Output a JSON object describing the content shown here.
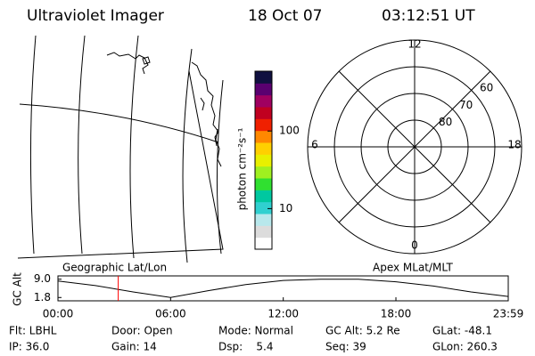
{
  "header": {
    "title": "Ultraviolet Imager",
    "date": "18 Oct 07",
    "time": "03:12:51 UT"
  },
  "colorbar": {
    "label": "photon cm⁻²s⁻¹",
    "log": true,
    "lim": [
      3,
      590
    ],
    "ticks": [
      10,
      100
    ],
    "colors": [
      "#ffffff",
      "#dcdcdc",
      "#b8e8ec",
      "#30d0d0",
      "#00c8a0",
      "#30e030",
      "#a0f020",
      "#e8f000",
      "#ffd000",
      "#ff8800",
      "#f02000",
      "#c00020",
      "#a00060",
      "#5a0070",
      "#101040"
    ]
  },
  "polar": {
    "rlim": [
      90,
      50
    ],
    "rings": [
      80,
      70,
      60
    ],
    "mlt_labels": [
      12,
      6,
      18,
      0
    ]
  },
  "chart_data": {
    "type": "line",
    "label_left": "Geographic Lat/Lon",
    "label_right": "Apex MLat/MLT",
    "ylabel": "GC Alt",
    "x": [
      0,
      2,
      4,
      6,
      8,
      10,
      12,
      14,
      16,
      18,
      20,
      22,
      23.983
    ],
    "values": [
      8.3,
      6.5,
      4.0,
      1.8,
      4.5,
      6.9,
      8.5,
      9.0,
      9.0,
      8.0,
      6.3,
      4.0,
      2.2
    ],
    "color": "#000000",
    "current_time": 3.21,
    "current_color": "#ff0000",
    "xlim": [
      0,
      23.983
    ],
    "ylim": [
      0.5,
      10.3
    ],
    "xticks": [
      {
        "value": 0,
        "label": "00:00"
      },
      {
        "value": 6,
        "label": "06:00"
      },
      {
        "value": 12,
        "label": "12:00"
      },
      {
        "value": 18,
        "label": "18:00"
      },
      {
        "value": 23.983,
        "label": "23:59"
      }
    ],
    "yticks": [
      {
        "value": 9,
        "label": "9.0"
      },
      1.8
    ]
  },
  "footer": {
    "rows": [
      [
        "Flt: LBHL",
        "Door: Open",
        "Mode: Normal",
        "GC Alt: 5.2 Re",
        "GLat: -48.1"
      ],
      [
        "IP: 36.0",
        "Gain: 14",
        "Dsp:    5.4",
        "Seq: 39",
        "GLon: 260.3"
      ]
    ]
  }
}
